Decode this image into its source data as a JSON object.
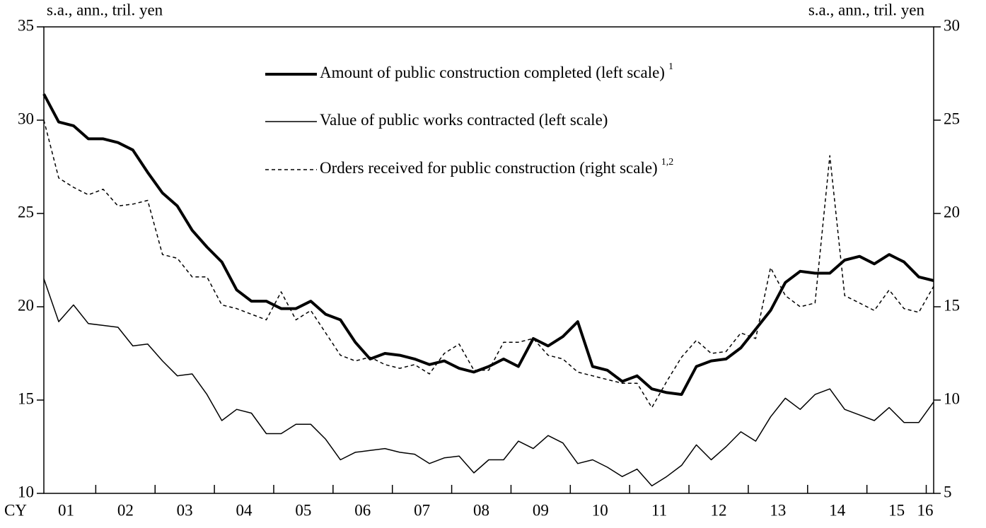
{
  "chart_data": {
    "type": "line",
    "y_label": "s.a., ann., tril. yen",
    "y2_label": "s.a., ann., tril. yen",
    "x_label": "CY",
    "x": [
      2001.125,
      2001.375,
      2001.625,
      2001.875,
      2002.125,
      2002.375,
      2002.625,
      2002.875,
      2003.125,
      2003.375,
      2003.625,
      2003.875,
      2004.125,
      2004.375,
      2004.625,
      2004.875,
      2005.125,
      2005.375,
      2005.625,
      2005.875,
      2006.125,
      2006.375,
      2006.625,
      2006.875,
      2007.125,
      2007.375,
      2007.625,
      2007.875,
      2008.125,
      2008.375,
      2008.625,
      2008.875,
      2009.125,
      2009.375,
      2009.625,
      2009.875,
      2010.125,
      2010.375,
      2010.625,
      2010.875,
      2011.125,
      2011.375,
      2011.625,
      2011.875,
      2012.125,
      2012.375,
      2012.625,
      2012.875,
      2013.125,
      2013.375,
      2013.625,
      2013.875,
      2014.125,
      2014.375,
      2014.625,
      2014.875,
      2015.125,
      2015.375,
      2015.625,
      2015.875,
      2016.125
    ],
    "xlim": [
      2001.125,
      2016.125
    ],
    "xticks": [
      {
        "value": 2001.5,
        "label": "01"
      },
      {
        "value": 2002.5,
        "label": "02"
      },
      {
        "value": 2003.5,
        "label": "03"
      },
      {
        "value": 2004.5,
        "label": "04"
      },
      {
        "value": 2005.5,
        "label": "05"
      },
      {
        "value": 2006.5,
        "label": "06"
      },
      {
        "value": 2007.5,
        "label": "07"
      },
      {
        "value": 2008.5,
        "label": "08"
      },
      {
        "value": 2009.5,
        "label": "09"
      },
      {
        "value": 2010.5,
        "label": "10"
      },
      {
        "value": 2011.5,
        "label": "11"
      },
      {
        "value": 2012.5,
        "label": "12"
      },
      {
        "value": 2013.5,
        "label": "13"
      },
      {
        "value": 2014.5,
        "label": "14"
      },
      {
        "value": 2015.5,
        "label": "15"
      },
      {
        "value": 2016.5,
        "label": "16"
      }
    ],
    "ylim": [
      10,
      35
    ],
    "yticks": [
      10,
      15,
      20,
      25,
      30,
      35
    ],
    "y2lim": [
      5,
      30
    ],
    "y2ticks": [
      5,
      10,
      15,
      20,
      25,
      30
    ],
    "series": [
      {
        "name": "Amount of public construction completed (left scale)",
        "note": "1",
        "color": "#000000",
        "width": 4,
        "dash": "none",
        "values": [
          31.4,
          29.9,
          29.7,
          29.0,
          29.0,
          28.8,
          28.4,
          27.2,
          26.1,
          25.4,
          24.1,
          23.2,
          22.4,
          20.9,
          20.3,
          20.3,
          19.9,
          19.9,
          20.3,
          19.6,
          19.3,
          18.1,
          17.2,
          17.5,
          17.4,
          17.2,
          16.9,
          17.1,
          16.7,
          16.5,
          16.8,
          17.2,
          16.8,
          18.3,
          17.9,
          18.4,
          19.2,
          16.8,
          16.6,
          16.0,
          16.3,
          15.6,
          15.4,
          15.3,
          16.8,
          17.1,
          17.2,
          17.8,
          18.8,
          19.8,
          21.3,
          21.9,
          21.8,
          21.8,
          22.5,
          22.7,
          22.3,
          22.8,
          22.4,
          21.6,
          21.4
        ]
      },
      {
        "name": "Value of public works contracted (left scale)",
        "color": "#000000",
        "width": 1.5,
        "dash": "none",
        "values": [
          21.5,
          19.2,
          20.1,
          19.1,
          19.0,
          18.9,
          17.9,
          18.0,
          17.1,
          16.3,
          16.4,
          15.3,
          13.9,
          14.5,
          14.3,
          13.2,
          13.2,
          13.7,
          13.7,
          12.9,
          11.8,
          12.2,
          12.3,
          12.4,
          12.2,
          12.1,
          11.6,
          11.9,
          12.0,
          11.1,
          11.8,
          11.8,
          12.8,
          12.4,
          13.1,
          12.7,
          11.6,
          11.8,
          11.4,
          10.9,
          11.3,
          10.4,
          10.9,
          11.5,
          12.6,
          11.8,
          12.5,
          13.3,
          12.8,
          14.1,
          15.1,
          14.5,
          15.3,
          15.6,
          14.5,
          14.2,
          13.9,
          14.6,
          13.8,
          13.8,
          14.9
        ]
      },
      {
        "name": "Orders received for public construction (right scale)",
        "note": "1,2",
        "color": "#000000",
        "width": 1.5,
        "dash": "5,4",
        "axis": "y2",
        "values": [
          25.0,
          21.9,
          21.4,
          21.0,
          21.3,
          20.4,
          20.5,
          20.7,
          17.8,
          17.6,
          16.6,
          16.6,
          15.1,
          14.9,
          14.6,
          14.3,
          15.8,
          14.3,
          14.8,
          13.6,
          12.4,
          12.1,
          12.3,
          11.9,
          11.7,
          11.9,
          11.4,
          12.5,
          13.0,
          11.6,
          11.6,
          13.1,
          13.1,
          13.3,
          12.4,
          12.2,
          11.5,
          11.3,
          11.1,
          10.9,
          10.9,
          9.6,
          11.0,
          12.3,
          13.2,
          12.5,
          12.6,
          13.6,
          13.3,
          17.1,
          15.6,
          15.0,
          15.2,
          23.1,
          15.6,
          15.2,
          14.8,
          15.9,
          14.9,
          14.7,
          16.1
        ]
      }
    ]
  }
}
